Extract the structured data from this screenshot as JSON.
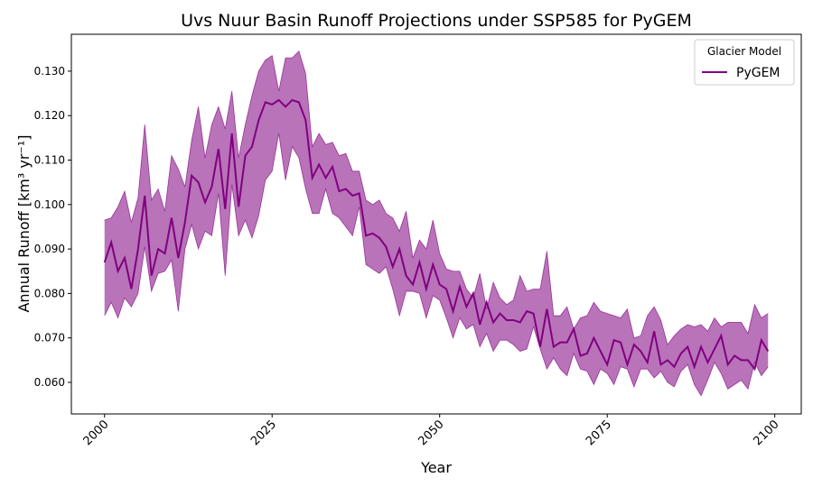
{
  "chart_data": {
    "type": "line",
    "title": "Uvs Nuur Basin Runoff Projections under SSP585 for PyGEM",
    "x_label": "Year",
    "y_label": "Annual Runoff [km³ yr⁻¹]",
    "legend_title": "Glacier Model",
    "legend_position": "upper right",
    "x": [
      2000,
      2001,
      2002,
      2003,
      2004,
      2005,
      2006,
      2007,
      2008,
      2009,
      2010,
      2011,
      2012,
      2013,
      2014,
      2015,
      2016,
      2017,
      2018,
      2019,
      2020,
      2021,
      2022,
      2023,
      2024,
      2025,
      2026,
      2027,
      2028,
      2029,
      2030,
      2031,
      2032,
      2033,
      2034,
      2035,
      2036,
      2037,
      2038,
      2039,
      2040,
      2041,
      2042,
      2043,
      2044,
      2045,
      2046,
      2047,
      2048,
      2049,
      2050,
      2051,
      2052,
      2053,
      2054,
      2055,
      2056,
      2057,
      2058,
      2059,
      2060,
      2061,
      2062,
      2063,
      2064,
      2065,
      2066,
      2067,
      2068,
      2069,
      2070,
      2071,
      2072,
      2073,
      2074,
      2075,
      2076,
      2077,
      2078,
      2079,
      2080,
      2081,
      2082,
      2083,
      2084,
      2085,
      2086,
      2087,
      2088,
      2089,
      2090,
      2091,
      2092,
      2093,
      2094,
      2095,
      2096,
      2097,
      2098,
      2099
    ],
    "series": [
      {
        "name": "PyGEM",
        "color": "#800080",
        "fill_opacity": 0.55,
        "values": [
          0.087,
          0.0915,
          0.085,
          0.088,
          0.081,
          0.09,
          0.102,
          0.084,
          0.09,
          0.089,
          0.097,
          0.088,
          0.096,
          0.1065,
          0.105,
          0.1005,
          0.104,
          0.1125,
          0.099,
          0.116,
          0.0995,
          0.111,
          0.113,
          0.119,
          0.123,
          0.1225,
          0.1235,
          0.122,
          0.1235,
          0.123,
          0.119,
          0.106,
          0.109,
          0.106,
          0.1085,
          0.103,
          0.1035,
          0.102,
          0.1025,
          0.093,
          0.0935,
          0.0925,
          0.0905,
          0.086,
          0.09,
          0.084,
          0.082,
          0.087,
          0.081,
          0.0865,
          0.082,
          0.081,
          0.076,
          0.0815,
          0.077,
          0.08,
          0.073,
          0.078,
          0.0735,
          0.0755,
          0.074,
          0.074,
          0.0735,
          0.076,
          0.0755,
          0.068,
          0.0765,
          0.068,
          0.069,
          0.069,
          0.072,
          0.066,
          0.0665,
          0.07,
          0.067,
          0.064,
          0.0695,
          0.069,
          0.064,
          0.0685,
          0.067,
          0.0645,
          0.0715,
          0.064,
          0.065,
          0.0635,
          0.0665,
          0.068,
          0.0635,
          0.068,
          0.0645,
          0.0675,
          0.0705,
          0.064,
          0.066,
          0.065,
          0.065,
          0.063,
          0.0695,
          0.067
        ],
        "upper": [
          0.0965,
          0.097,
          0.0995,
          0.103,
          0.096,
          0.1015,
          0.118,
          0.101,
          0.1035,
          0.0985,
          0.111,
          0.108,
          0.104,
          0.1145,
          0.122,
          0.1105,
          0.118,
          0.122,
          0.117,
          0.1255,
          0.1105,
          0.118,
          0.1245,
          0.13,
          0.1325,
          0.1335,
          0.1255,
          0.133,
          0.133,
          0.1345,
          0.1295,
          0.113,
          0.116,
          0.1135,
          0.114,
          0.111,
          0.1115,
          0.1075,
          0.1075,
          0.101,
          0.1,
          0.101,
          0.098,
          0.097,
          0.094,
          0.0985,
          0.088,
          0.092,
          0.09,
          0.0965,
          0.089,
          0.0855,
          0.085,
          0.085,
          0.081,
          0.079,
          0.0845,
          0.0765,
          0.0825,
          0.079,
          0.0775,
          0.0785,
          0.084,
          0.0805,
          0.081,
          0.081,
          0.0895,
          0.075,
          0.075,
          0.077,
          0.072,
          0.0745,
          0.075,
          0.078,
          0.076,
          0.0755,
          0.075,
          0.0745,
          0.0765,
          0.07,
          0.0705,
          0.075,
          0.077,
          0.074,
          0.0685,
          0.0705,
          0.072,
          0.073,
          0.0725,
          0.073,
          0.0715,
          0.0745,
          0.0725,
          0.0735,
          0.0735,
          0.0735,
          0.071,
          0.0775,
          0.0745,
          0.0755
        ],
        "lower": [
          0.075,
          0.078,
          0.0745,
          0.079,
          0.077,
          0.08,
          0.0905,
          0.0805,
          0.0845,
          0.085,
          0.0875,
          0.076,
          0.09,
          0.0955,
          0.09,
          0.094,
          0.093,
          0.1025,
          0.084,
          0.1045,
          0.093,
          0.0965,
          0.0925,
          0.0975,
          0.1055,
          0.1075,
          0.116,
          0.1055,
          0.113,
          0.1105,
          0.1035,
          0.098,
          0.098,
          0.1035,
          0.098,
          0.097,
          0.095,
          0.093,
          0.0995,
          0.0865,
          0.0855,
          0.0845,
          0.086,
          0.081,
          0.075,
          0.0805,
          0.0805,
          0.08,
          0.0745,
          0.0795,
          0.0785,
          0.0745,
          0.07,
          0.0745,
          0.072,
          0.073,
          0.068,
          0.071,
          0.067,
          0.0695,
          0.0695,
          0.0685,
          0.067,
          0.0675,
          0.0725,
          0.0675,
          0.063,
          0.0655,
          0.063,
          0.0615,
          0.0665,
          0.063,
          0.0625,
          0.0595,
          0.063,
          0.062,
          0.0595,
          0.0635,
          0.063,
          0.059,
          0.063,
          0.063,
          0.061,
          0.0625,
          0.06,
          0.059,
          0.0625,
          0.064,
          0.0595,
          0.057,
          0.0605,
          0.0645,
          0.062,
          0.0585,
          0.0595,
          0.0605,
          0.0585,
          0.0645,
          0.0615,
          0.0635
        ]
      }
    ],
    "xlim": [
      1995.05,
      2103.95
    ],
    "xticks": [
      2000,
      2025,
      2050,
      2075,
      2100
    ],
    "ylim": [
      0.0529,
      0.1383
    ],
    "yticks": [
      {
        "value": 0.06,
        "label": "0.060"
      },
      {
        "value": 0.07,
        "label": "0.070"
      },
      {
        "value": 0.08,
        "label": "0.080"
      },
      {
        "value": 0.09,
        "label": "0.090"
      },
      {
        "value": 0.1,
        "label": "0.100"
      },
      {
        "value": 0.11,
        "label": "0.110"
      },
      {
        "value": 0.12,
        "label": "0.120"
      },
      {
        "value": 0.13,
        "label": "0.130"
      }
    ],
    "grid": false
  }
}
